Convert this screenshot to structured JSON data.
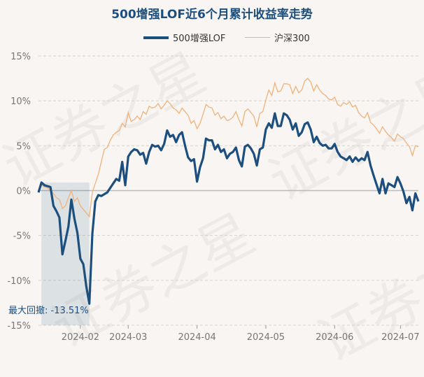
{
  "chart_data": {
    "type": "line",
    "title": "500增强LOF近6个月累计收益率走势",
    "x_ticks": [
      "2024-02",
      "2024-03",
      "2024-04",
      "2024-05",
      "2024-06",
      "2024-07"
    ],
    "ylim": [
      -15,
      15
    ],
    "y_ticks": [
      15,
      10,
      5,
      0,
      -5,
      -10,
      -15
    ],
    "y_tick_labels": [
      "15%",
      "10%",
      "5%",
      "0%",
      "-5%",
      "-10%",
      "-15%"
    ],
    "grid": true,
    "legend_position": "top-center",
    "series": [
      {
        "name": "500增强LOF",
        "color": "#1c4f7d",
        "values": [
          -0.2,
          0.9,
          0.6,
          0.5,
          0.4,
          -1.7,
          -2.3,
          -3.0,
          -7.1,
          -5.6,
          -4.0,
          -1.0,
          -3.1,
          -4.7,
          -7.6,
          -8.2,
          -10.7,
          -12.6,
          -4.8,
          -1.2,
          -0.5,
          -0.6,
          -0.4,
          -0.2,
          0.3,
          0.8,
          1.3,
          1.1,
          3.2,
          0.6,
          3.8,
          4.3,
          4.6,
          4.5,
          4.0,
          4.2,
          3.0,
          4.3,
          5.1,
          4.9,
          5.0,
          4.5,
          5.2,
          6.7,
          6.0,
          6.2,
          5.4,
          6.2,
          6.5,
          5.0,
          3.7,
          3.3,
          3.5,
          1.0,
          2.6,
          3.6,
          5.8,
          5.6,
          5.6,
          4.6,
          5.1,
          4.3,
          4.6,
          3.6,
          4.1,
          4.3,
          4.8,
          3.4,
          2.7,
          4.9,
          5.1,
          4.7,
          4.1,
          2.8,
          4.6,
          4.8,
          6.8,
          7.5,
          7.0,
          8.6,
          7.2,
          7.2,
          8.6,
          8.4,
          7.9,
          6.8,
          7.5,
          6.1,
          6.5,
          7.4,
          7.6,
          6.8,
          5.4,
          6.0,
          5.3,
          5.0,
          5.1,
          4.7,
          4.7,
          5.2,
          4.3,
          3.8,
          3.6,
          3.4,
          3.8,
          3.2,
          3.7,
          3.3,
          3.6,
          3.4,
          4.3,
          2.8,
          1.7,
          0.7,
          -0.3,
          1.3,
          -0.3,
          0.8,
          0.6,
          0.4,
          1.5,
          0.8,
          -0.1,
          -1.4,
          -0.7,
          -2.2,
          -0.3,
          -1.2
        ]
      },
      {
        "name": "沪深300",
        "color": "#f0b27a",
        "values": [
          0.0,
          0.6,
          0.4,
          0.3,
          0.0,
          -0.3,
          -0.8,
          -1.0,
          -2.0,
          -1.7,
          -0.8,
          0.0,
          -1.2,
          -0.8,
          -1.7,
          -2.1,
          -2.5,
          -2.9,
          -0.2,
          0.8,
          1.8,
          3.2,
          4.6,
          4.8,
          5.6,
          6.2,
          6.5,
          6.7,
          7.5,
          7.1,
          8.7,
          7.7,
          7.9,
          8.3,
          7.9,
          8.8,
          8.5,
          9.4,
          9.2,
          9.3,
          9.7,
          9.1,
          9.5,
          10.0,
          9.7,
          9.2,
          9.0,
          8.6,
          9.2,
          8.8,
          8.4,
          7.5,
          7.8,
          6.9,
          7.5,
          8.5,
          9.6,
          9.3,
          9.2,
          8.4,
          8.7,
          8.0,
          8.3,
          7.8,
          7.9,
          8.2,
          8.8,
          7.9,
          7.2,
          8.8,
          9.1,
          8.7,
          8.3,
          7.1,
          8.6,
          8.8,
          10.1,
          11.2,
          10.6,
          12.0,
          11.0,
          11.1,
          11.9,
          11.9,
          11.8,
          10.8,
          11.6,
          10.9,
          11.2,
          12.2,
          12.5,
          12.1,
          11.1,
          11.8,
          11.2,
          10.8,
          10.6,
          10.2,
          10.1,
          10.4,
          9.6,
          9.4,
          9.8,
          9.6,
          9.9,
          9.3,
          9.5,
          8.7,
          8.3,
          8.1,
          8.7,
          7.6,
          7.3,
          6.9,
          6.4,
          7.1,
          6.6,
          6.2,
          5.9,
          5.5,
          6.3,
          6.0,
          5.8,
          5.3,
          4.9,
          3.9,
          5.0,
          4.9
        ]
      }
    ],
    "max_drawdown_label": "最大回撤: -13.51%",
    "watermark": "证券之星"
  }
}
